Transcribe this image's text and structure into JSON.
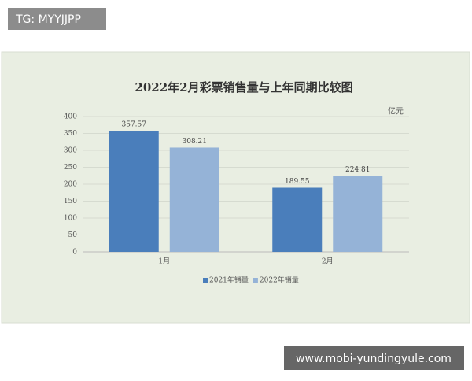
{
  "watermarks": {
    "top_left": "TG: MYYJJPP",
    "bottom_right": "www.mobi-yundingyule.com"
  },
  "chart_data": {
    "type": "bar",
    "title": "2022年2月彩票销售量与上年同期比较图",
    "unit": "亿元",
    "categories": [
      "1月",
      "2月"
    ],
    "series": [
      {
        "name": "2021年销量",
        "color": "#4a7ebb",
        "values": [
          357.57,
          189.55
        ]
      },
      {
        "name": "2022年销量",
        "color": "#95b3d7",
        "values": [
          308.21,
          224.81
        ]
      }
    ],
    "ylim": [
      0,
      400
    ],
    "yticks": [
      0,
      50,
      100,
      150,
      200,
      250,
      300,
      350,
      400
    ],
    "grid": true,
    "legend": "bottom"
  }
}
